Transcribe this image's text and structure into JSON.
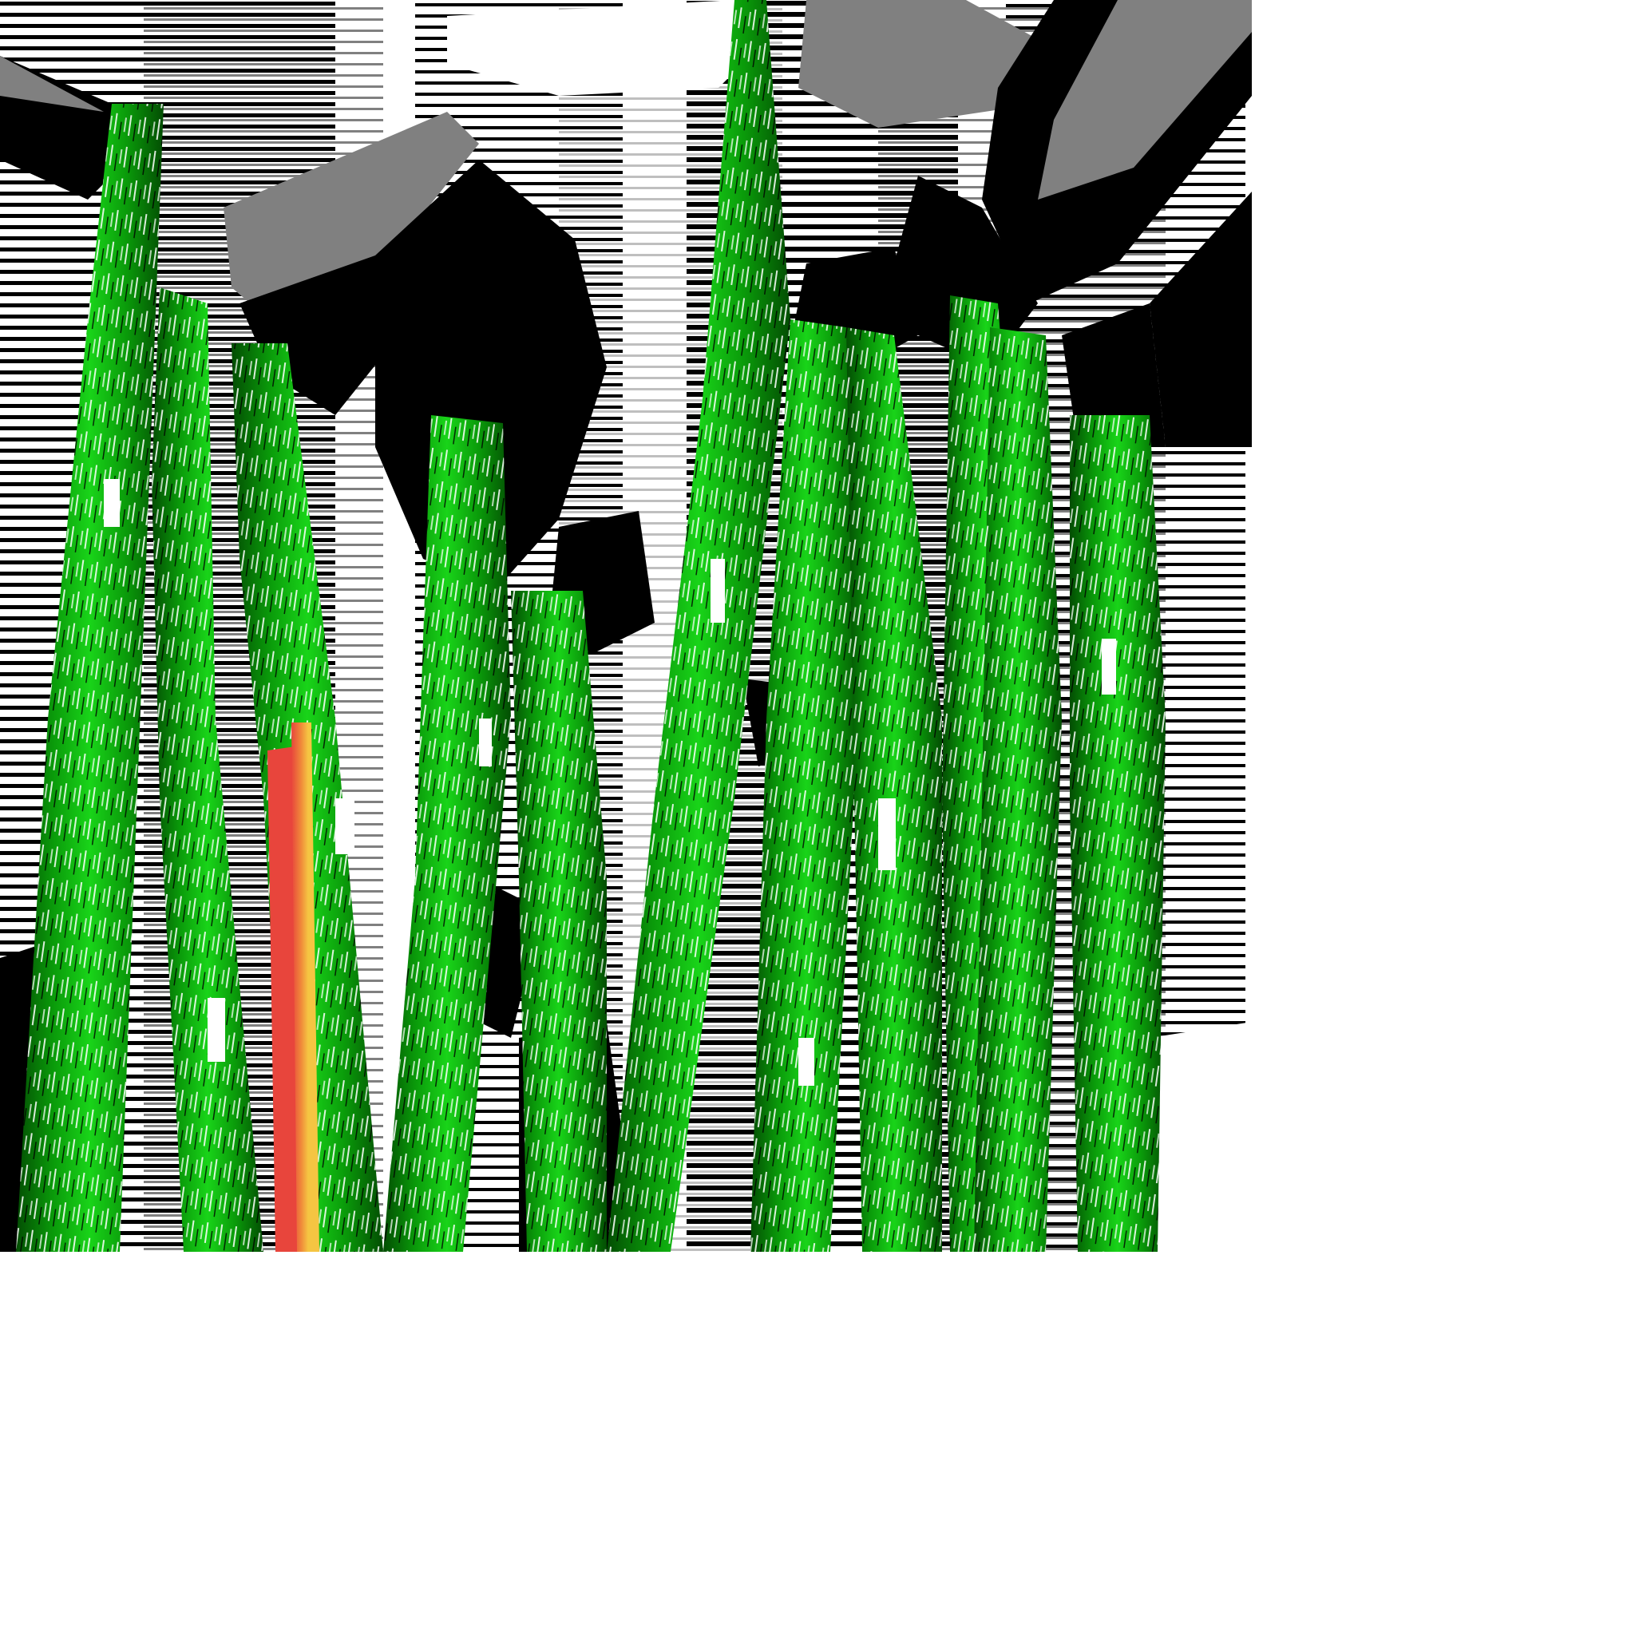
{
  "image": {
    "description_tokens": [],
    "palette": {
      "background": "#ffffff",
      "black": "#000000",
      "gray": "#808080",
      "light_gray": "#bfbfbf",
      "green_bright": "#19d419",
      "green_mid": "#0a9a0a",
      "green_dark": "#034d03",
      "yellow": "#f5c542",
      "orange": "#f08a3a",
      "red": "#e8453c"
    }
  }
}
